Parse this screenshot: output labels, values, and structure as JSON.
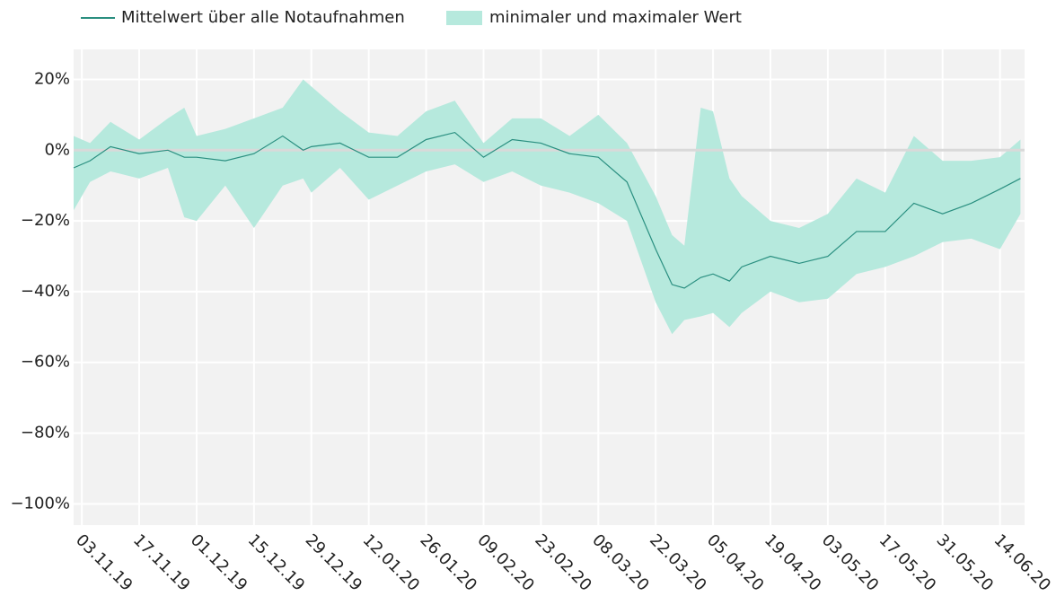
{
  "chart_data": {
    "type": "band-line",
    "x": [
      "2019-11-01",
      "2019-11-05",
      "2019-11-10",
      "2019-11-17",
      "2019-11-24",
      "2019-11-28",
      "2019-12-01",
      "2019-12-08",
      "2019-12-15",
      "2019-12-22",
      "2019-12-27",
      "2019-12-29",
      "2020-01-05",
      "2020-01-12",
      "2020-01-19",
      "2020-01-26",
      "2020-02-02",
      "2020-02-09",
      "2020-02-16",
      "2020-02-23",
      "2020-03-01",
      "2020-03-08",
      "2020-03-15",
      "2020-03-22",
      "2020-03-26",
      "2020-03-29",
      "2020-04-02",
      "2020-04-05",
      "2020-04-09",
      "2020-04-12",
      "2020-04-19",
      "2020-04-26",
      "2020-05-03",
      "2020-05-10",
      "2020-05-17",
      "2020-05-24",
      "2020-05-31",
      "2020-06-07",
      "2020-06-14",
      "2020-06-19"
    ],
    "series": [
      {
        "name": "Mittelwert über alle Notaufnahmen",
        "color": "#2a8f80",
        "values": [
          -5,
          -3,
          1,
          -1,
          0,
          -2,
          -2,
          -3,
          -1,
          4,
          0,
          1,
          2,
          -2,
          -2,
          3,
          5,
          -2,
          3,
          2,
          -1,
          -2,
          -9,
          -28,
          -38,
          -39,
          -36,
          -35,
          -37,
          -33,
          -30,
          -32,
          -30,
          -23,
          -23,
          -15,
          -18,
          -15,
          -11,
          -8
        ]
      },
      {
        "name": "minimaler und maximaler Wert",
        "color": "#b6e9dd",
        "low": [
          -17,
          -9,
          -6,
          -8,
          -5,
          -19,
          -20,
          -10,
          -22,
          -10,
          -8,
          -12,
          -5,
          -14,
          -10,
          -6,
          -4,
          -9,
          -6,
          -10,
          -12,
          -15,
          -20,
          -43,
          -52,
          -48,
          -47,
          -46,
          -50,
          -46,
          -40,
          -43,
          -42,
          -35,
          -33,
          -30,
          -26,
          -25,
          -28,
          -18
        ],
        "high": [
          4,
          2,
          8,
          3,
          9,
          12,
          4,
          6,
          9,
          12,
          20,
          18,
          11,
          5,
          4,
          11,
          14,
          2,
          9,
          9,
          4,
          10,
          2,
          -13,
          -24,
          -27,
          12,
          11,
          -8,
          -13,
          -20,
          -22,
          -18,
          -8,
          -12,
          4,
          -3,
          -3,
          -2,
          3
        ]
      }
    ],
    "xlim": [
      "2019-11-01",
      "2020-06-20"
    ],
    "xticks": [
      {
        "value": "2019-11-03",
        "label": "03.11.19"
      },
      {
        "value": "2019-11-17",
        "label": "17.11.19"
      },
      {
        "value": "2019-12-01",
        "label": "01.12.19"
      },
      {
        "value": "2019-12-15",
        "label": "15.12.19"
      },
      {
        "value": "2019-12-29",
        "label": "29.12.19"
      },
      {
        "value": "2020-01-12",
        "label": "12.01.20"
      },
      {
        "value": "2020-01-26",
        "label": "26.01.20"
      },
      {
        "value": "2020-02-09",
        "label": "09.02.20"
      },
      {
        "value": "2020-02-23",
        "label": "23.02.20"
      },
      {
        "value": "2020-03-08",
        "label": "08.03.20"
      },
      {
        "value": "2020-03-22",
        "label": "22.03.20"
      },
      {
        "value": "2020-04-05",
        "label": "05.04.20"
      },
      {
        "value": "2020-04-19",
        "label": "19.04.20"
      },
      {
        "value": "2020-05-03",
        "label": "03.05.20"
      },
      {
        "value": "2020-05-17",
        "label": "17.05.20"
      },
      {
        "value": "2020-05-31",
        "label": "31.05.20"
      },
      {
        "value": "2020-06-14",
        "label": "14.06.20"
      }
    ],
    "ylim": [
      -106,
      28.5
    ],
    "yticks": [
      {
        "value": 20,
        "label": "20%"
      },
      {
        "value": 0,
        "label": "0%"
      },
      {
        "value": -20,
        "label": "−20%"
      },
      {
        "value": -40,
        "label": "−40%"
      },
      {
        "value": -60,
        "label": "−60%"
      },
      {
        "value": -80,
        "label": "−80%"
      },
      {
        "value": -100,
        "label": "−100%"
      }
    ],
    "grid": true
  }
}
